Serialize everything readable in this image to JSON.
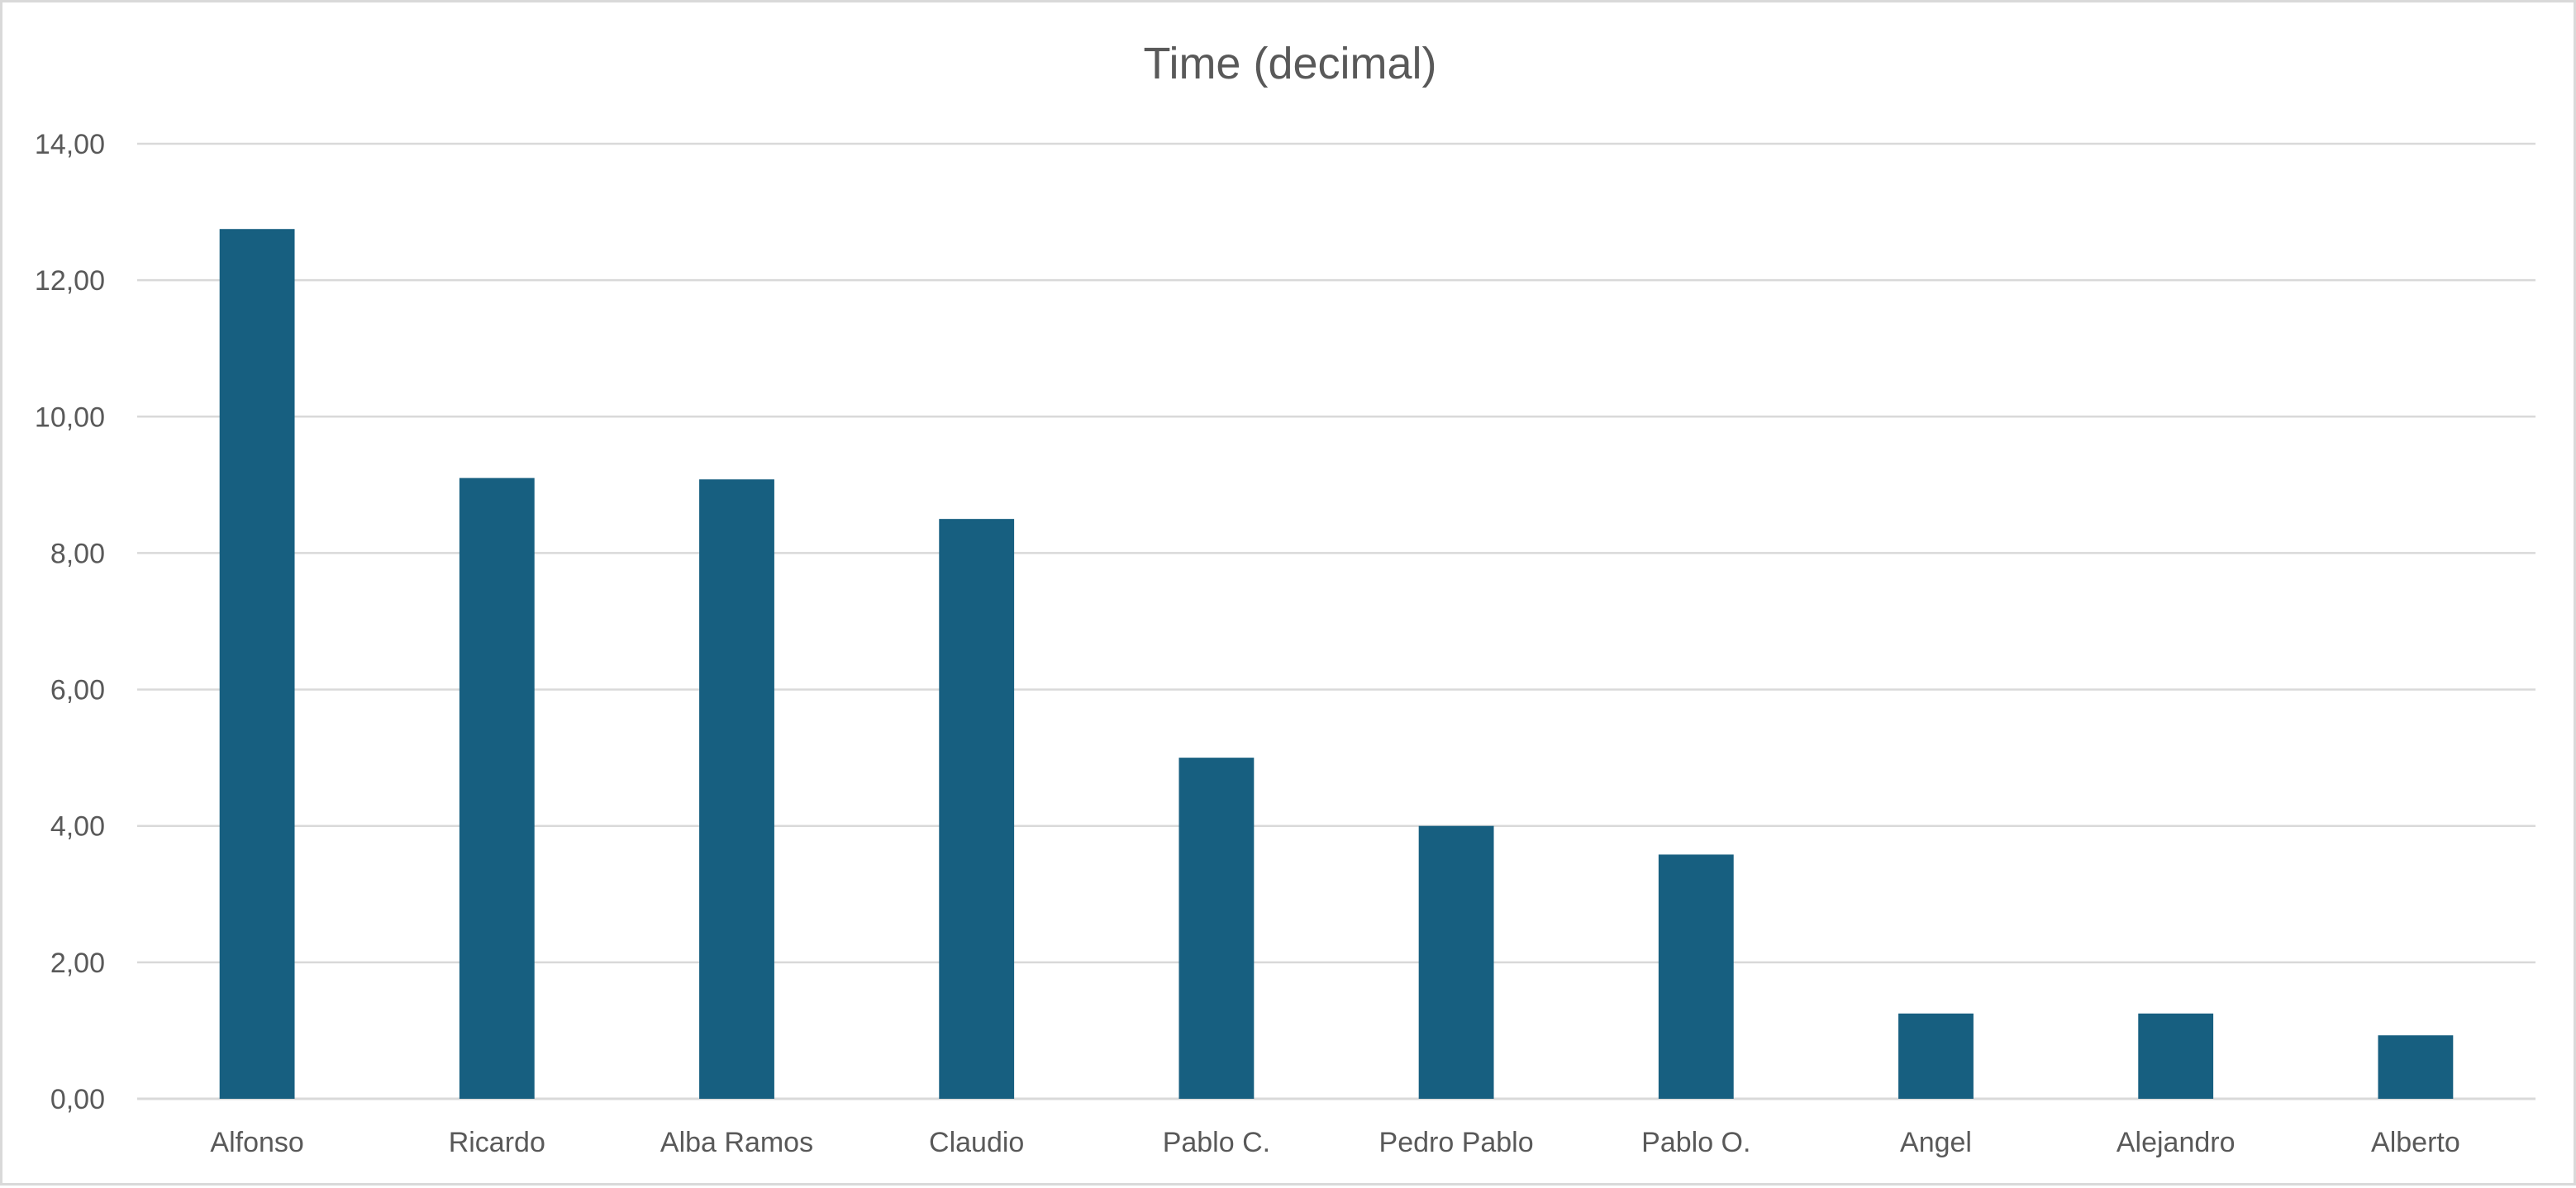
{
  "chart_data": {
    "type": "bar",
    "title": "Time (decimal)",
    "xlabel": "",
    "ylabel": "",
    "categories": [
      "Alfonso",
      "Ricardo",
      "Alba Ramos",
      "Claudio",
      "Pablo C.",
      "Pedro Pablo",
      "Pablo O.",
      "Angel",
      "Alejandro",
      "Alberto"
    ],
    "values": [
      12.75,
      9.1,
      9.08,
      8.5,
      5.0,
      4.0,
      3.58,
      1.25,
      1.25,
      0.93
    ],
    "ylim": [
      0,
      14
    ],
    "yticks": [
      "0,00",
      "2,00",
      "4,00",
      "6,00",
      "8,00",
      "10,00",
      "12,00",
      "14,00"
    ],
    "grid": true,
    "legend": "none",
    "bar_color": "#175f80"
  }
}
